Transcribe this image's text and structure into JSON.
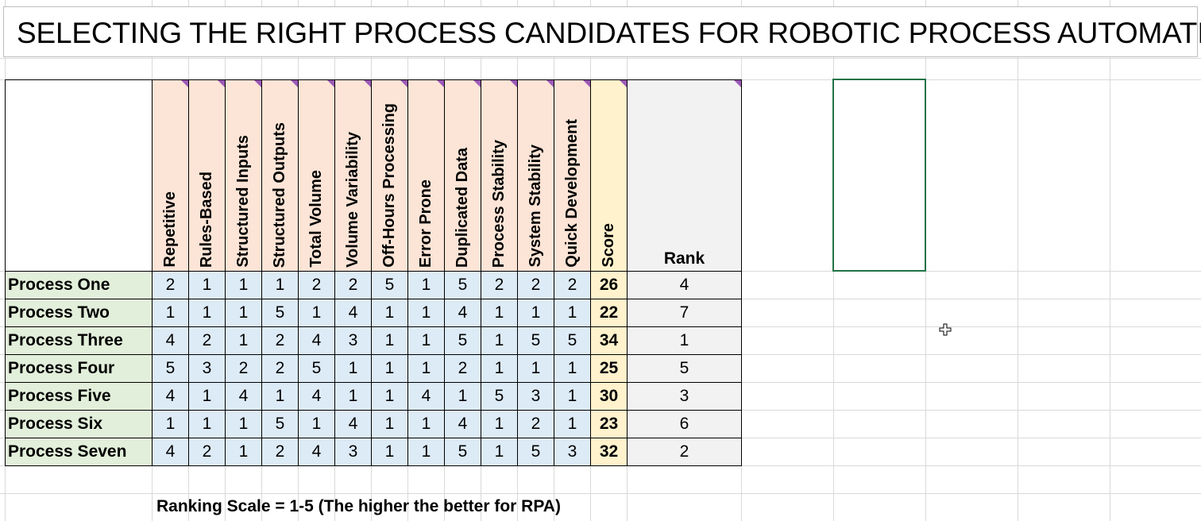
{
  "title": "SELECTING THE RIGHT PROCESS CANDIDATES FOR ROBOTIC PROCESS AUTOMATION",
  "table": {
    "criteria": [
      "Repetitive",
      "Rules-Based",
      "Structured Inputs",
      "Structured Outputs",
      "Total Volume",
      "Volume Variability",
      "Off-Hours Processing",
      "Error Prone",
      "Duplicated Data",
      "Process Stability",
      "System Stability",
      "Quick Development"
    ],
    "score_header": "Score",
    "rank_header": "Rank",
    "rows": [
      {
        "name": "Process One",
        "values": [
          2,
          1,
          1,
          1,
          2,
          2,
          5,
          1,
          5,
          2,
          2,
          2
        ],
        "score": 26,
        "rank": 4
      },
      {
        "name": "Process Two",
        "values": [
          1,
          1,
          1,
          5,
          1,
          4,
          1,
          1,
          4,
          1,
          1,
          1
        ],
        "score": 22,
        "rank": 7
      },
      {
        "name": "Process Three",
        "values": [
          4,
          2,
          1,
          2,
          4,
          3,
          1,
          1,
          5,
          1,
          5,
          5
        ],
        "score": 34,
        "rank": 1
      },
      {
        "name": "Process Four",
        "values": [
          5,
          3,
          2,
          2,
          5,
          1,
          1,
          1,
          2,
          1,
          1,
          1
        ],
        "score": 25,
        "rank": 5
      },
      {
        "name": "Process Five",
        "values": [
          4,
          1,
          4,
          1,
          4,
          1,
          1,
          4,
          1,
          5,
          3,
          1
        ],
        "score": 30,
        "rank": 3
      },
      {
        "name": "Process Six",
        "values": [
          1,
          1,
          1,
          5,
          1,
          4,
          1,
          1,
          4,
          1,
          2,
          1
        ],
        "score": 23,
        "rank": 6
      },
      {
        "name": "Process Seven",
        "values": [
          4,
          2,
          1,
          2,
          4,
          3,
          1,
          1,
          5,
          1,
          5,
          3
        ],
        "score": 32,
        "rank": 2
      }
    ]
  },
  "footnote": "Ranking Scale = 1-5 (The higher the better for RPA)"
}
